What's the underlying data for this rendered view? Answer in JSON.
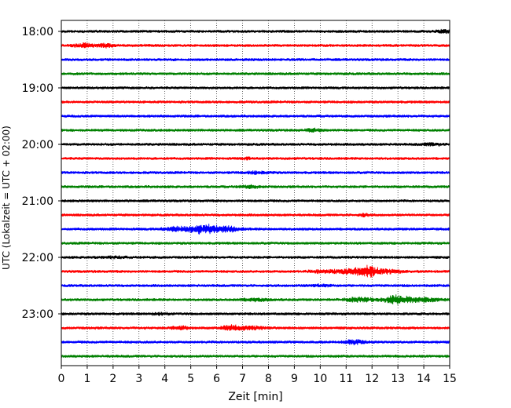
{
  "chart_data": {
    "type": "line",
    "title": "",
    "xlabel": "Zeit  [min]",
    "ylabel": "UTC (Lokalzeit = UTC + 02:00)",
    "xlim": [
      0,
      15
    ],
    "x_ticks": [
      "0",
      "1",
      "2",
      "3",
      "4",
      "5",
      "6",
      "7",
      "8",
      "9",
      "10",
      "11",
      "12",
      "13",
      "14",
      "15"
    ],
    "y_tick_labels": [
      "18:00",
      "19:00",
      "20:00",
      "21:00",
      "22:00",
      "23:00"
    ],
    "grid": "vertical dotted at each minute",
    "legend": "none",
    "trace_interval_minutes": 15,
    "trace_colors": [
      "#000000",
      "#ff0000",
      "#0000ff",
      "#008000"
    ],
    "series": [
      {
        "start": "18:00",
        "color": "#000000",
        "events": [
          {
            "t": 14.8,
            "amp": 0.35,
            "w": 0.3
          }
        ]
      },
      {
        "start": "18:15",
        "color": "#ff0000",
        "events": [
          {
            "t": 0.9,
            "amp": 0.45,
            "w": 0.4
          },
          {
            "t": 1.7,
            "amp": 0.55,
            "w": 0.3
          }
        ]
      },
      {
        "start": "18:30",
        "color": "#0000ff",
        "events": []
      },
      {
        "start": "18:45",
        "color": "#008000",
        "events": []
      },
      {
        "start": "19:00",
        "color": "#000000",
        "events": []
      },
      {
        "start": "19:15",
        "color": "#ff0000",
        "events": []
      },
      {
        "start": "19:30",
        "color": "#0000ff",
        "events": []
      },
      {
        "start": "19:45",
        "color": "#008000",
        "events": [
          {
            "t": 9.8,
            "amp": 0.35,
            "w": 0.4
          }
        ]
      },
      {
        "start": "20:00",
        "color": "#000000",
        "events": [
          {
            "t": 14.3,
            "amp": 0.3,
            "w": 0.4
          }
        ]
      },
      {
        "start": "20:15",
        "color": "#ff0000",
        "events": [
          {
            "t": 7.2,
            "amp": 0.25,
            "w": 0.2
          }
        ]
      },
      {
        "start": "20:30",
        "color": "#0000ff",
        "events": [
          {
            "t": 7.6,
            "amp": 0.25,
            "w": 0.5
          }
        ]
      },
      {
        "start": "20:45",
        "color": "#008000",
        "events": [
          {
            "t": 7.3,
            "amp": 0.3,
            "w": 0.4
          }
        ]
      },
      {
        "start": "21:00",
        "color": "#000000",
        "events": []
      },
      {
        "start": "21:15",
        "color": "#ff0000",
        "events": [
          {
            "t": 11.7,
            "amp": 0.3,
            "w": 0.2
          }
        ]
      },
      {
        "start": "21:30",
        "color": "#0000ff",
        "events": [
          {
            "t": 4.3,
            "amp": 0.45,
            "w": 0.4
          },
          {
            "t": 5.0,
            "amp": 0.6,
            "w": 0.5
          },
          {
            "t": 5.6,
            "amp": 1.0,
            "w": 0.4
          },
          {
            "t": 6.4,
            "amp": 0.7,
            "w": 0.5
          }
        ]
      },
      {
        "start": "21:45",
        "color": "#008000",
        "events": []
      },
      {
        "start": "22:00",
        "color": "#000000",
        "events": [
          {
            "t": 2.0,
            "amp": 0.25,
            "w": 0.5
          }
        ]
      },
      {
        "start": "22:15",
        "color": "#ff0000",
        "events": [
          {
            "t": 10.2,
            "amp": 0.4,
            "w": 0.6
          },
          {
            "t": 11.4,
            "amp": 0.8,
            "w": 0.6
          },
          {
            "t": 11.9,
            "amp": 1.1,
            "w": 0.3
          },
          {
            "t": 12.6,
            "amp": 0.5,
            "w": 0.6
          }
        ]
      },
      {
        "start": "22:30",
        "color": "#0000ff",
        "events": [
          {
            "t": 10.0,
            "amp": 0.25,
            "w": 0.5
          }
        ]
      },
      {
        "start": "22:45",
        "color": "#008000",
        "events": [
          {
            "t": 7.5,
            "amp": 0.3,
            "w": 0.6
          },
          {
            "t": 11.5,
            "amp": 0.5,
            "w": 0.6
          },
          {
            "t": 12.9,
            "amp": 1.0,
            "w": 0.4
          },
          {
            "t": 13.8,
            "amp": 0.6,
            "w": 0.8
          }
        ]
      },
      {
        "start": "23:00",
        "color": "#000000",
        "events": [
          {
            "t": 3.8,
            "amp": 0.3,
            "w": 0.3
          }
        ]
      },
      {
        "start": "23:15",
        "color": "#ff0000",
        "events": [
          {
            "t": 4.6,
            "amp": 0.5,
            "w": 0.3
          },
          {
            "t": 6.6,
            "amp": 0.7,
            "w": 0.4
          },
          {
            "t": 7.4,
            "amp": 0.35,
            "w": 0.5
          }
        ]
      },
      {
        "start": "23:30",
        "color": "#0000ff",
        "events": [
          {
            "t": 11.3,
            "amp": 0.5,
            "w": 0.4
          }
        ]
      },
      {
        "start": "23:45",
        "color": "#008000",
        "events": []
      }
    ]
  }
}
